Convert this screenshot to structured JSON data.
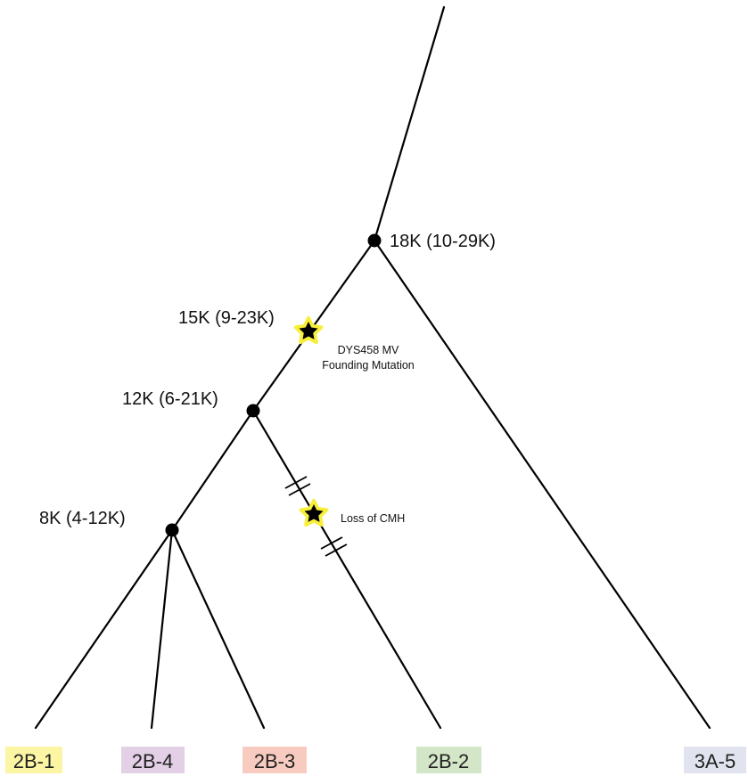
{
  "nodes": [
    {
      "id": "root-split",
      "label": "18K (10-29K)"
    },
    {
      "id": "clade-2b",
      "label": "12K (6-21K)"
    },
    {
      "id": "clade-2b-134",
      "label": "8K (4-12K)"
    }
  ],
  "events": [
    {
      "id": "founding",
      "date_label": "15K (9-23K)",
      "lines": [
        "DYS458 MV",
        "Founding Mutation"
      ],
      "marker": "star-icon"
    },
    {
      "id": "cmh-loss",
      "lines": [
        "Loss of CMH"
      ],
      "marker": "star-icon"
    }
  ],
  "leaves": [
    {
      "id": "2b1",
      "label": "2B-1",
      "color": "#fcf6a4"
    },
    {
      "id": "2b4",
      "label": "2B-4",
      "color": "#e3cfe6"
    },
    {
      "id": "2b3",
      "label": "2B-3",
      "color": "#f8cbc0"
    },
    {
      "id": "2b2",
      "label": "2B-2",
      "color": "#d3e6c7"
    },
    {
      "id": "3a5",
      "label": "3A-5",
      "color": "#e1e4ee"
    }
  ],
  "colors": {
    "line": "#000000",
    "star_glow": "#f7ef3a",
    "star": "#000000"
  }
}
